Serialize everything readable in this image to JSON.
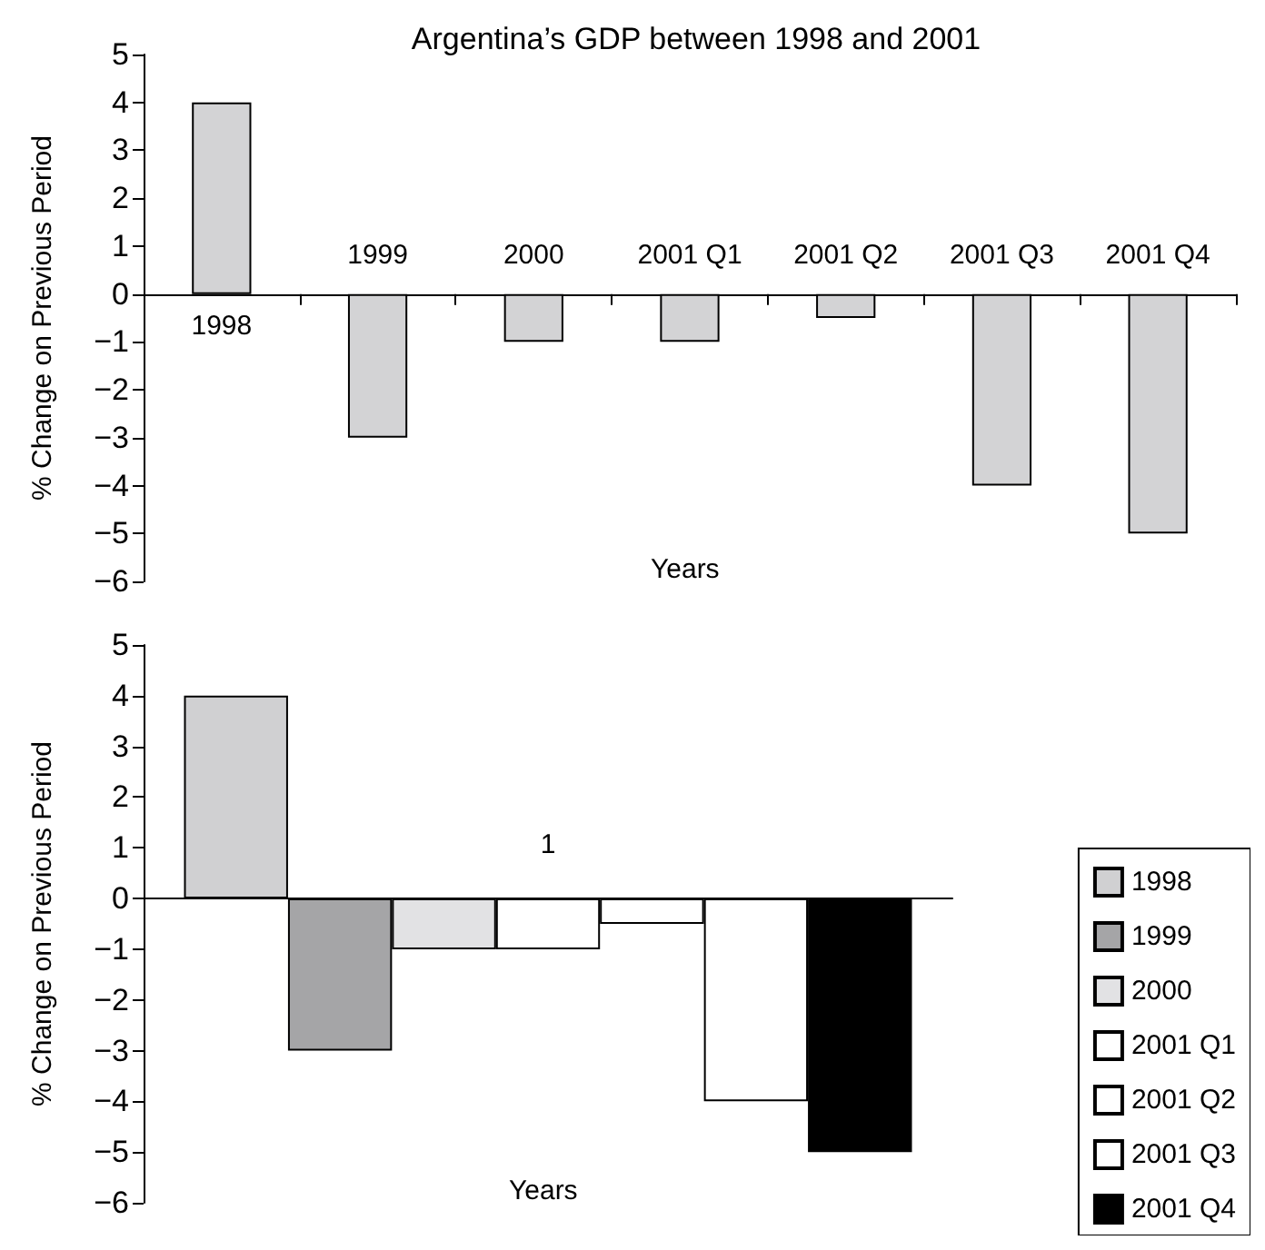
{
  "chart_data": [
    {
      "type": "bar",
      "title": "Argentina’s GDP between 1998 and 2001",
      "xlabel": "Years",
      "ylabel": "% Change on Previous Period",
      "categories": [
        "1998",
        "1999",
        "2000",
        "2001 Q1",
        "2001 Q2",
        "2001 Q3",
        "2001 Q4"
      ],
      "values": [
        4,
        -3,
        -1,
        -1,
        -0.5,
        -4,
        -5
      ],
      "color": "#d3d3d5",
      "ylim": [
        -6,
        5
      ],
      "yticks": [
        -6,
        -5,
        -4,
        -3,
        -2,
        -1,
        0,
        1,
        2,
        3,
        4,
        5
      ]
    },
    {
      "type": "bar",
      "xlabel": "Years",
      "ylabel": "% Change on Previous Period",
      "categories": [
        "1"
      ],
      "legend": "bottom right",
      "ylim": [
        -6,
        5
      ],
      "yticks": [
        -6,
        -5,
        -4,
        -3,
        -2,
        -1,
        0,
        1,
        2,
        3,
        4,
        5
      ],
      "series": [
        {
          "name": "1998",
          "color": "#d0d0d2",
          "values": [
            4
          ]
        },
        {
          "name": "1999",
          "color": "#a5a5a7",
          "values": [
            -3
          ]
        },
        {
          "name": "2000",
          "color": "#e2e2e4",
          "values": [
            -1
          ]
        },
        {
          "name": "2001 Q1",
          "color": "#ffffff",
          "values": [
            -1
          ]
        },
        {
          "name": "2001 Q2",
          "color": "#ffffff",
          "values": [
            -0.5
          ]
        },
        {
          "name": "2001 Q3",
          "color": "#ffffff",
          "values": [
            -4
          ]
        },
        {
          "name": "2001 Q4",
          "color": "#000000",
          "values": [
            -5
          ]
        }
      ]
    }
  ]
}
